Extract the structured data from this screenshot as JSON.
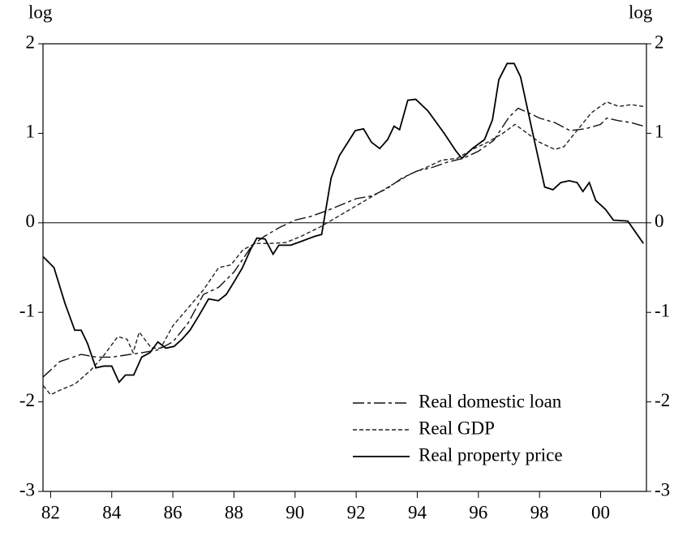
{
  "chart_data": {
    "type": "line",
    "y_axis_label": "log",
    "y2_axis_label": "log",
    "xlim": [
      1981.75,
      2001.5
    ],
    "ylim": [
      -3,
      2
    ],
    "y2lim": [
      -3,
      2
    ],
    "xticks": [
      {
        "value": 1982,
        "label": "82"
      },
      {
        "value": 1984,
        "label": "84"
      },
      {
        "value": 1986,
        "label": "86"
      },
      {
        "value": 1988,
        "label": "88"
      },
      {
        "value": 1990,
        "label": "90"
      },
      {
        "value": 1992,
        "label": "92"
      },
      {
        "value": 1994,
        "label": "94"
      },
      {
        "value": 1996,
        "label": "96"
      },
      {
        "value": 1998,
        "label": "98"
      },
      {
        "value": 2000,
        "label": "00"
      }
    ],
    "yticks": [
      -3,
      -2,
      -1,
      0,
      1,
      2
    ],
    "y2ticks": [
      -3,
      -2,
      -1,
      0,
      1,
      2
    ],
    "zero_line": true,
    "legend": "lower-right",
    "series": [
      {
        "name": "Real domestic loan",
        "color": "#111111",
        "style": "dashdot",
        "x": [
          1981.76,
          1982.3,
          1983.0,
          1983.5,
          1984.0,
          1985.0,
          1985.5,
          1986.0,
          1986.5,
          1987.0,
          1987.5,
          1988.0,
          1988.6,
          1989.0,
          1989.5,
          1990.0,
          1990.5,
          1991.0,
          1991.5,
          1992.0,
          1992.5,
          1993.0,
          1993.5,
          1994.0,
          1994.5,
          1995.0,
          1995.5,
          1996.0,
          1996.5,
          1997.0,
          1997.3,
          1997.7,
          1998.0,
          1998.5,
          1999.0,
          1999.5,
          2000.0,
          2000.2,
          2000.6,
          2001.0,
          2001.4
        ],
        "values": [
          -1.72,
          -1.55,
          -1.47,
          -1.5,
          -1.5,
          -1.45,
          -1.42,
          -1.33,
          -1.12,
          -0.8,
          -0.72,
          -0.55,
          -0.25,
          -0.15,
          -0.05,
          0.03,
          0.07,
          0.13,
          0.2,
          0.27,
          0.3,
          0.38,
          0.5,
          0.58,
          0.62,
          0.68,
          0.72,
          0.8,
          0.92,
          1.18,
          1.28,
          1.22,
          1.17,
          1.12,
          1.03,
          1.05,
          1.1,
          1.17,
          1.14,
          1.12,
          1.08
        ]
      },
      {
        "name": "Real GDP",
        "color": "#222222",
        "style": "dashed",
        "x": [
          1981.76,
          1982.0,
          1982.3,
          1982.8,
          1983.3,
          1983.7,
          1984.2,
          1984.5,
          1984.7,
          1984.9,
          1985.3,
          1985.6,
          1986.0,
          1986.5,
          1987.0,
          1987.5,
          1987.9,
          1988.3,
          1988.7,
          1989.2,
          1989.7,
          1990.2,
          1990.8,
          1991.3,
          1991.8,
          1992.3,
          1992.8,
          1993.3,
          1993.8,
          1994.3,
          1994.8,
          1995.3,
          1995.8,
          1996.3,
          1996.8,
          1997.2,
          1997.6,
          1998.0,
          1998.5,
          1998.8,
          1999.2,
          1999.7,
          2000.2,
          2000.6,
          2001.0,
          2001.4
        ],
        "values": [
          -1.82,
          -1.92,
          -1.87,
          -1.8,
          -1.65,
          -1.5,
          -1.27,
          -1.3,
          -1.45,
          -1.22,
          -1.4,
          -1.4,
          -1.15,
          -0.95,
          -0.75,
          -0.5,
          -0.47,
          -0.3,
          -0.23,
          -0.23,
          -0.22,
          -0.15,
          -0.05,
          0.05,
          0.15,
          0.25,
          0.35,
          0.45,
          0.55,
          0.62,
          0.7,
          0.72,
          0.82,
          0.9,
          1.0,
          1.1,
          1.0,
          0.9,
          0.82,
          0.85,
          1.02,
          1.23,
          1.35,
          1.3,
          1.32,
          1.3
        ]
      },
      {
        "name": "Real property price",
        "color": "#000000",
        "style": "solid",
        "x": [
          1981.76,
          1982.11,
          1982.47,
          1982.79,
          1983.0,
          1983.21,
          1983.48,
          1983.74,
          1984.0,
          1984.24,
          1984.45,
          1984.72,
          1984.98,
          1985.25,
          1985.51,
          1985.77,
          1986.04,
          1986.3,
          1986.56,
          1986.83,
          1987.17,
          1987.49,
          1987.75,
          1988.02,
          1988.28,
          1988.54,
          1988.75,
          1989.02,
          1989.28,
          1989.47,
          1989.86,
          1990.26,
          1990.65,
          1990.87,
          1991.18,
          1991.45,
          1991.97,
          1992.24,
          1992.5,
          1992.77,
          1993.03,
          1993.24,
          1993.42,
          1993.69,
          1993.95,
          1994.35,
          1994.88,
          1995.27,
          1995.46,
          1995.8,
          1996.2,
          1996.46,
          1996.67,
          1996.94,
          1997.17,
          1997.38,
          1997.78,
          1998.17,
          1998.44,
          1998.7,
          1998.97,
          1999.23,
          1999.42,
          1999.63,
          1999.84,
          2000.16,
          2000.42,
          2000.89,
          2001.4
        ],
        "values": [
          -0.38,
          -0.5,
          -0.9,
          -1.2,
          -1.2,
          -1.35,
          -1.62,
          -1.6,
          -1.6,
          -1.78,
          -1.7,
          -1.7,
          -1.5,
          -1.45,
          -1.33,
          -1.4,
          -1.38,
          -1.3,
          -1.2,
          -1.05,
          -0.85,
          -0.87,
          -0.8,
          -0.65,
          -0.5,
          -0.3,
          -0.17,
          -0.18,
          -0.35,
          -0.25,
          -0.25,
          -0.2,
          -0.15,
          -0.13,
          0.5,
          0.75,
          1.03,
          1.05,
          0.9,
          0.83,
          0.93,
          1.08,
          1.04,
          1.37,
          1.38,
          1.25,
          1.0,
          0.8,
          0.72,
          0.83,
          0.93,
          1.15,
          1.6,
          1.78,
          1.78,
          1.63,
          1.0,
          0.4,
          0.37,
          0.45,
          0.47,
          0.45,
          0.35,
          0.45,
          0.25,
          0.15,
          0.03,
          0.02,
          -0.23
        ]
      }
    ]
  }
}
